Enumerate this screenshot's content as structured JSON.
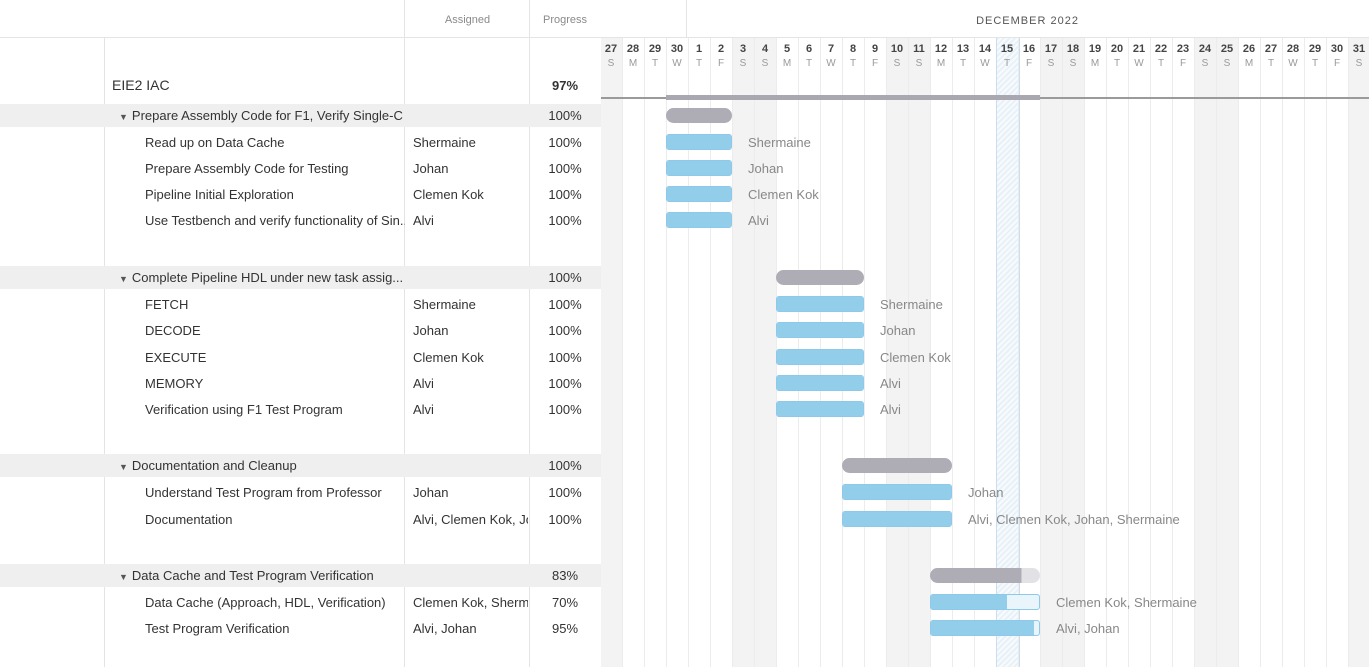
{
  "header": {
    "assigned_label": "Assigned",
    "progress_label": "Progress",
    "month_label": "DECEMBER 2022"
  },
  "project": {
    "name": "EIE2 IAC",
    "progress": "97%"
  },
  "timeline": {
    "days": [
      {
        "n": "27",
        "w": "S"
      },
      {
        "n": "28",
        "w": "M"
      },
      {
        "n": "29",
        "w": "T"
      },
      {
        "n": "30",
        "w": "W"
      },
      {
        "n": "1",
        "w": "T"
      },
      {
        "n": "2",
        "w": "F"
      },
      {
        "n": "3",
        "w": "S"
      },
      {
        "n": "4",
        "w": "S"
      },
      {
        "n": "5",
        "w": "M"
      },
      {
        "n": "6",
        "w": "T"
      },
      {
        "n": "7",
        "w": "W"
      },
      {
        "n": "8",
        "w": "T"
      },
      {
        "n": "9",
        "w": "F"
      },
      {
        "n": "10",
        "w": "S"
      },
      {
        "n": "11",
        "w": "S"
      },
      {
        "n": "12",
        "w": "M"
      },
      {
        "n": "13",
        "w": "T"
      },
      {
        "n": "14",
        "w": "W"
      },
      {
        "n": "15",
        "w": "T"
      },
      {
        "n": "16",
        "w": "F"
      },
      {
        "n": "17",
        "w": "S"
      },
      {
        "n": "18",
        "w": "S"
      },
      {
        "n": "19",
        "w": "M"
      },
      {
        "n": "20",
        "w": "T"
      },
      {
        "n": "21",
        "w": "W"
      },
      {
        "n": "22",
        "w": "T"
      },
      {
        "n": "23",
        "w": "F"
      },
      {
        "n": "24",
        "w": "S"
      },
      {
        "n": "25",
        "w": "S"
      },
      {
        "n": "26",
        "w": "M"
      },
      {
        "n": "27",
        "w": "T"
      },
      {
        "n": "28",
        "w": "W"
      },
      {
        "n": "29",
        "w": "T"
      },
      {
        "n": "30",
        "w": "F"
      },
      {
        "n": "31",
        "w": "S"
      }
    ],
    "today_day": "15",
    "project_bar": {
      "start_index": 3,
      "end_index": 20
    }
  },
  "groups": [
    {
      "name": "Prepare Assembly Code for F1, Verify Single-C...",
      "progress": "100%",
      "bar": {
        "start_index": 3,
        "end_index": 6,
        "fraction": 1.0
      },
      "tasks": [
        {
          "name": "Read up on Data Cache",
          "assigned": "Shermaine",
          "progress": "100%",
          "fraction": 1.0,
          "start_index": 3,
          "end_index": 6,
          "label": "Shermaine"
        },
        {
          "name": "Prepare Assembly Code for Testing",
          "assigned": "Johan",
          "progress": "100%",
          "fraction": 1.0,
          "start_index": 3,
          "end_index": 6,
          "label": "Johan"
        },
        {
          "name": "Pipeline Initial Exploration",
          "assigned": "Clemen Kok",
          "progress": "100%",
          "fraction": 1.0,
          "start_index": 3,
          "end_index": 6,
          "label": "Clemen Kok"
        },
        {
          "name": "Use Testbench and verify functionality of Sin...",
          "assigned": "Alvi",
          "progress": "100%",
          "fraction": 1.0,
          "start_index": 3,
          "end_index": 6,
          "label": "Alvi"
        }
      ]
    },
    {
      "name": "Complete Pipeline HDL under new task assig...",
      "progress": "100%",
      "bar": {
        "start_index": 8,
        "end_index": 12,
        "fraction": 1.0
      },
      "tasks": [
        {
          "name": "FETCH",
          "assigned": "Shermaine",
          "progress": "100%",
          "fraction": 1.0,
          "start_index": 8,
          "end_index": 12,
          "label": "Shermaine"
        },
        {
          "name": "DECODE",
          "assigned": "Johan",
          "progress": "100%",
          "fraction": 1.0,
          "start_index": 8,
          "end_index": 12,
          "label": "Johan"
        },
        {
          "name": "EXECUTE",
          "assigned": "Clemen Kok",
          "progress": "100%",
          "fraction": 1.0,
          "start_index": 8,
          "end_index": 12,
          "label": "Clemen Kok"
        },
        {
          "name": "MEMORY",
          "assigned": "Alvi",
          "progress": "100%",
          "fraction": 1.0,
          "start_index": 8,
          "end_index": 12,
          "label": "Alvi"
        },
        {
          "name": "Verification using F1 Test Program",
          "assigned": "Alvi",
          "progress": "100%",
          "fraction": 1.0,
          "start_index": 8,
          "end_index": 12,
          "label": "Alvi"
        }
      ]
    },
    {
      "name": "Documentation and Cleanup",
      "progress": "100%",
      "bar": {
        "start_index": 11,
        "end_index": 16,
        "fraction": 1.0
      },
      "tasks": [
        {
          "name": "Understand Test Program from Professor",
          "assigned": "Johan",
          "progress": "100%",
          "fraction": 1.0,
          "start_index": 11,
          "end_index": 16,
          "label": "Johan"
        },
        {
          "name": "Documentation",
          "assigned": "Alvi, Clemen Kok, Jo",
          "progress": "100%",
          "fraction": 1.0,
          "start_index": 11,
          "end_index": 16,
          "label": "Alvi, Clemen Kok, Johan, Shermaine"
        }
      ]
    },
    {
      "name": "Data Cache and Test Program Verification",
      "progress": "83%",
      "bar": {
        "start_index": 15,
        "end_index": 20,
        "fraction": 0.83
      },
      "tasks": [
        {
          "name": "Data Cache (Approach, HDL, Verification)",
          "assigned": "Clemen Kok, Sherm",
          "progress": "70%",
          "fraction": 0.7,
          "start_index": 15,
          "end_index": 20,
          "label": "Clemen Kok, Shermaine"
        },
        {
          "name": "Test Program Verification",
          "assigned": "Alvi, Johan",
          "progress": "95%",
          "fraction": 0.95,
          "start_index": 15,
          "end_index": 20,
          "label": "Alvi, Johan"
        }
      ]
    }
  ]
}
